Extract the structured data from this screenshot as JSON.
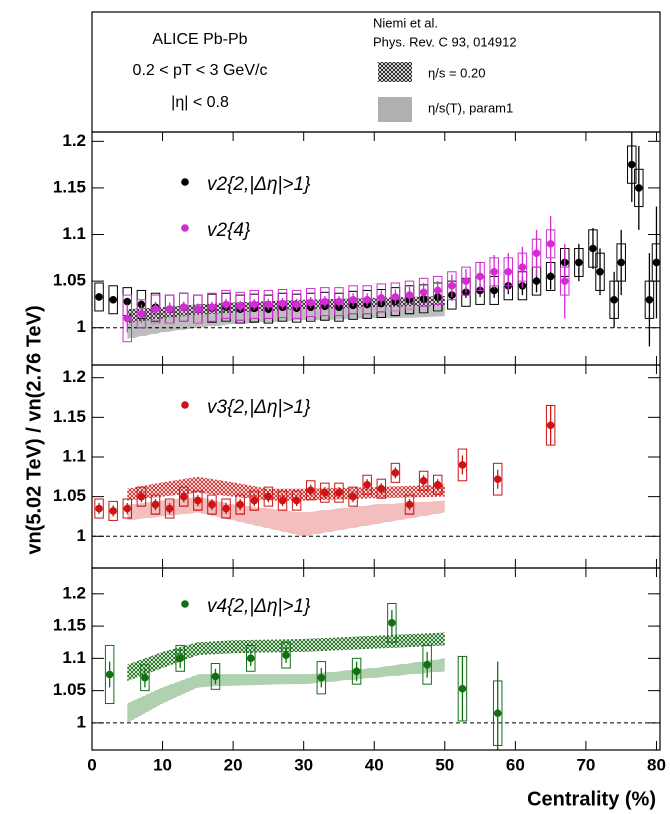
{
  "header": {
    "experiment": "ALICE Pb-Pb",
    "kinematics": "0.2 < pT < 3 GeV/c",
    "eta_range": "|η| < 0.8",
    "model_author": "Niemi et al.",
    "model_ref": "Phys. Rev. C 93, 014912",
    "models": [
      {
        "name": "η/s = 0.20"
      },
      {
        "name": "η/s(T), param1"
      }
    ]
  },
  "y_label": "vn(5.02 TeV) / vn(2.76 TeV)",
  "x_label": "Centrality (%)",
  "chart_data": [
    {
      "type": "scatter",
      "xlim": [
        0,
        80.5
      ],
      "xticks": [
        0,
        10,
        20,
        30,
        40,
        50,
        60,
        70,
        80
      ],
      "ylim": [
        0.96,
        1.21
      ],
      "yticks": [
        1,
        1.05,
        1.1,
        1.15,
        1.2
      ],
      "hline": 1,
      "series": [
        {
          "name": "v2{2,|Δη|>1}",
          "color": "#000000",
          "x": [
            1,
            3,
            5,
            7,
            9,
            11,
            13,
            15,
            17,
            19,
            21,
            23,
            25,
            27,
            29,
            31,
            33,
            35,
            37,
            39,
            41,
            43,
            45,
            47,
            49,
            51,
            53,
            55,
            57,
            59,
            61,
            63,
            65,
            67,
            69,
            71,
            72,
            74,
            75,
            76.5,
            77.5,
            79,
            80
          ],
          "values": [
            1.033,
            1.03,
            1.028,
            1.025,
            1.022,
            1.02,
            1.022,
            1.02,
            1.021,
            1.022,
            1.02,
            1.021,
            1.02,
            1.022,
            1.021,
            1.022,
            1.023,
            1.022,
            1.024,
            1.025,
            1.026,
            1.028,
            1.03,
            1.031,
            1.033,
            1.035,
            1.038,
            1.04,
            1.04,
            1.045,
            1.045,
            1.05,
            1.055,
            1.07,
            1.07,
            1.085,
            1.06,
            1.03,
            1.07,
            1.175,
            1.15,
            1.03,
            1.07
          ],
          "errors": [
            0.004,
            0.004,
            0.004,
            0.004,
            0.004,
            0.004,
            0.004,
            0.004,
            0.004,
            0.004,
            0.004,
            0.004,
            0.004,
            0.004,
            0.004,
            0.004,
            0.004,
            0.004,
            0.004,
            0.004,
            0.004,
            0.004,
            0.004,
            0.004,
            0.004,
            0.006,
            0.006,
            0.007,
            0.008,
            0.009,
            0.01,
            0.012,
            0.014,
            0.016,
            0.02,
            0.022,
            0.025,
            0.03,
            0.035,
            0.04,
            0.045,
            0.05,
            0.06
          ],
          "syst": [
            0.015,
            0.015,
            0.015,
            0.015,
            0.015,
            0.015,
            0.015,
            0.015,
            0.015,
            0.015,
            0.015,
            0.015,
            0.015,
            0.015,
            0.015,
            0.015,
            0.015,
            0.015,
            0.015,
            0.015,
            0.015,
            0.015,
            0.015,
            0.015,
            0.015,
            0.015,
            0.015,
            0.015,
            0.015,
            0.015,
            0.015,
            0.015,
            0.015,
            0.015,
            0.015,
            0.02,
            0.02,
            0.02,
            0.02,
            0.02,
            0.02,
            0.02,
            0.02
          ]
        },
        {
          "name": "v2{4}",
          "color": "#d42bd4",
          "x": [
            5,
            7,
            9,
            11,
            13,
            15,
            17,
            19,
            21,
            23,
            25,
            27,
            29,
            31,
            33,
            35,
            37,
            39,
            41,
            43,
            45,
            47,
            49,
            51,
            53,
            55,
            57,
            59,
            61,
            63,
            65,
            67
          ],
          "values": [
            1.01,
            1.015,
            1.02,
            1.02,
            1.022,
            1.02,
            1.022,
            1.025,
            1.023,
            1.025,
            1.025,
            1.026,
            1.025,
            1.027,
            1.028,
            1.028,
            1.03,
            1.03,
            1.032,
            1.033,
            1.035,
            1.038,
            1.04,
            1.045,
            1.05,
            1.055,
            1.06,
            1.06,
            1.065,
            1.08,
            1.09,
            1.05
          ],
          "errors": [
            0.015,
            0.01,
            0.008,
            0.007,
            0.006,
            0.006,
            0.006,
            0.006,
            0.006,
            0.006,
            0.006,
            0.006,
            0.006,
            0.006,
            0.006,
            0.006,
            0.007,
            0.007,
            0.008,
            0.008,
            0.009,
            0.01,
            0.01,
            0.012,
            0.013,
            0.015,
            0.018,
            0.02,
            0.022,
            0.025,
            0.03,
            0.04
          ],
          "syst": [
            0.025,
            0.015,
            0.015,
            0.015,
            0.015,
            0.015,
            0.015,
            0.015,
            0.015,
            0.015,
            0.015,
            0.015,
            0.015,
            0.015,
            0.015,
            0.015,
            0.015,
            0.015,
            0.015,
            0.015,
            0.015,
            0.015,
            0.015,
            0.015,
            0.015,
            0.015,
            0.015,
            0.015,
            0.015,
            0.015,
            0.015,
            0.015
          ]
        }
      ],
      "bands": [
        {
          "color": "#222222",
          "x": [
            5,
            10,
            15,
            20,
            30,
            40,
            50
          ],
          "lower": [
            0.995,
            1.002,
            1.008,
            1.012,
            1.016,
            1.018,
            1.02
          ],
          "upper": [
            1.02,
            1.022,
            1.025,
            1.027,
            1.03,
            1.032,
            1.034
          ]
        },
        {
          "color": "#555555",
          "x": [
            5,
            10,
            15,
            20,
            30,
            40,
            50
          ],
          "lower": [
            0.988,
            0.995,
            1.0,
            1.004,
            1.008,
            1.01,
            1.012
          ],
          "upper": [
            1.005,
            1.01,
            1.014,
            1.016,
            1.02,
            1.022,
            1.024
          ]
        }
      ]
    },
    {
      "type": "scatter",
      "xlim": [
        0,
        80.5
      ],
      "xticks": [
        0,
        10,
        20,
        30,
        40,
        50,
        60,
        70,
        80
      ],
      "ylim": [
        0.96,
        1.216
      ],
      "yticks": [
        1,
        1.05,
        1.1,
        1.15,
        1.2
      ],
      "hline": 1,
      "series": [
        {
          "name": "v3{2,|Δη|>1}",
          "color": "#cc1414",
          "x": [
            1,
            3,
            5,
            7,
            9,
            11,
            13,
            15,
            17,
            19,
            21,
            23,
            25,
            27,
            29,
            31,
            33,
            35,
            37,
            39,
            41,
            43,
            45,
            47,
            49,
            52.5,
            57.5,
            65
          ],
          "values": [
            1.035,
            1.032,
            1.035,
            1.05,
            1.04,
            1.035,
            1.05,
            1.045,
            1.04,
            1.035,
            1.04,
            1.045,
            1.05,
            1.045,
            1.045,
            1.058,
            1.055,
            1.055,
            1.05,
            1.065,
            1.06,
            1.08,
            1.04,
            1.07,
            1.065,
            1.09,
            1.072,
            1.14
          ],
          "errors": [
            0.007,
            0.007,
            0.007,
            0.007,
            0.007,
            0.007,
            0.007,
            0.007,
            0.007,
            0.007,
            0.007,
            0.007,
            0.007,
            0.007,
            0.007,
            0.007,
            0.007,
            0.007,
            0.007,
            0.007,
            0.007,
            0.007,
            0.007,
            0.007,
            0.007,
            0.012,
            0.012,
            0.025
          ],
          "syst": [
            0.012,
            0.012,
            0.012,
            0.012,
            0.012,
            0.012,
            0.012,
            0.012,
            0.012,
            0.012,
            0.012,
            0.012,
            0.012,
            0.012,
            0.012,
            0.012,
            0.012,
            0.012,
            0.012,
            0.012,
            0.012,
            0.012,
            0.012,
            0.012,
            0.012,
            0.02,
            0.02,
            0.025
          ]
        }
      ],
      "bands": [
        {
          "color": "#cc2222",
          "x": [
            5,
            10,
            15,
            20,
            25,
            30,
            40,
            50
          ],
          "lower": [
            1.045,
            1.05,
            1.055,
            1.05,
            1.045,
            1.045,
            1.048,
            1.05
          ],
          "upper": [
            1.06,
            1.068,
            1.075,
            1.068,
            1.06,
            1.06,
            1.062,
            1.065
          ]
        },
        {
          "color": "#dd5555",
          "x": [
            5,
            10,
            15,
            20,
            25,
            30,
            40,
            50
          ],
          "lower": [
            1.02,
            1.025,
            1.03,
            1.02,
            1.01,
            1.0,
            1.015,
            1.03
          ],
          "upper": [
            1.04,
            1.045,
            1.05,
            1.04,
            1.035,
            1.03,
            1.04,
            1.045
          ]
        }
      ]
    },
    {
      "type": "scatter",
      "xlim": [
        0,
        80.5
      ],
      "xticks": [
        0,
        10,
        20,
        30,
        40,
        50,
        60,
        70,
        80
      ],
      "ylim": [
        0.958,
        1.24
      ],
      "yticks": [
        1,
        1.05,
        1.1,
        1.15,
        1.2
      ],
      "hline": 1,
      "series": [
        {
          "name": "v4{2,|Δη|>1}",
          "color": "#127012",
          "x": [
            2.5,
            7.5,
            12.5,
            17.5,
            22.5,
            27.5,
            32.5,
            37.5,
            42.5,
            47.5,
            52.5,
            57.5
          ],
          "values": [
            1.075,
            1.07,
            1.1,
            1.072,
            1.1,
            1.105,
            1.07,
            1.08,
            1.155,
            1.09,
            1.053,
            1.015
          ],
          "errors": [
            0.02,
            0.015,
            0.015,
            0.012,
            0.012,
            0.012,
            0.015,
            0.015,
            0.02,
            0.02,
            0.05,
            0.08
          ],
          "syst": [
            0.045,
            0.02,
            0.02,
            0.02,
            0.02,
            0.02,
            0.025,
            0.02,
            0.03,
            0.03,
            0.05,
            0.05
          ]
        }
      ],
      "bands": [
        {
          "color": "#116611",
          "x": [
            5,
            10,
            15,
            20,
            30,
            40,
            50
          ],
          "lower": [
            1.065,
            1.085,
            1.105,
            1.108,
            1.11,
            1.115,
            1.12
          ],
          "upper": [
            1.09,
            1.11,
            1.125,
            1.128,
            1.13,
            1.135,
            1.14
          ]
        },
        {
          "color": "#338833",
          "x": [
            5,
            10,
            15,
            20,
            30,
            40,
            50
          ],
          "lower": [
            1.0,
            1.03,
            1.055,
            1.058,
            1.06,
            1.07,
            1.08
          ],
          "upper": [
            1.03,
            1.055,
            1.075,
            1.075,
            1.075,
            1.085,
            1.1
          ]
        }
      ]
    }
  ]
}
